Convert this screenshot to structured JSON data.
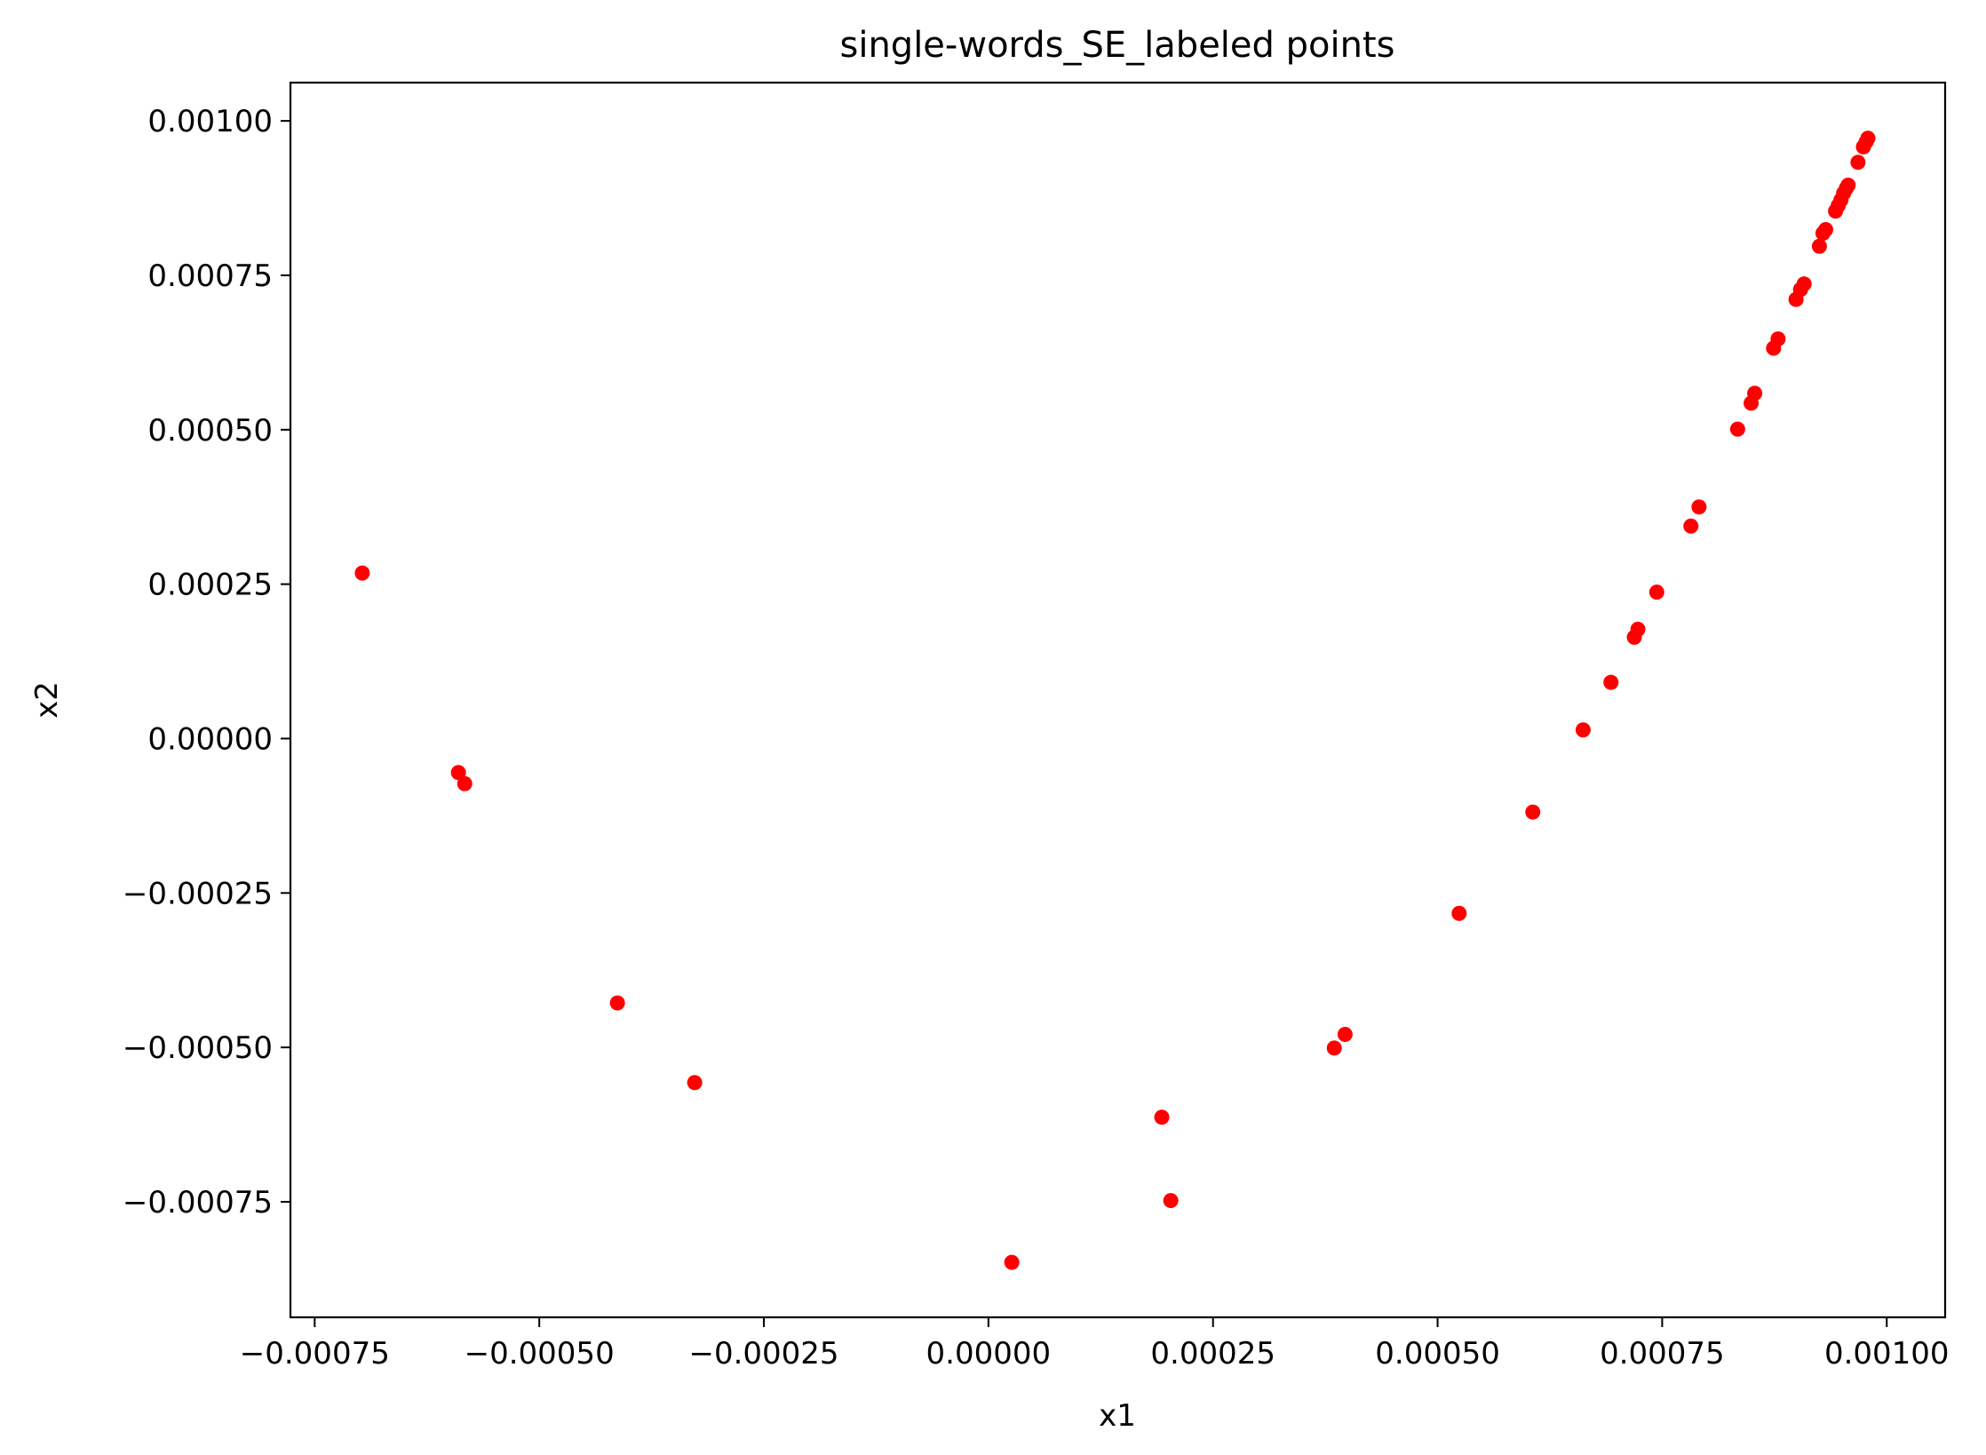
{
  "chart_data": {
    "type": "scatter",
    "title": "single-words_SE_labeled points",
    "xlabel": "x1",
    "ylabel": "x2",
    "xlim": [
      -0.000777,
      0.001065
    ],
    "ylim": [
      -0.000937,
      0.001062
    ],
    "grid": false,
    "marker_color": "#ff0000",
    "x_ticks": [
      {
        "value": -0.00075,
        "label": "−0.00075"
      },
      {
        "value": -0.0005,
        "label": "−0.00050"
      },
      {
        "value": -0.00025,
        "label": "−0.00025"
      },
      {
        "value": 0.0,
        "label": "0.00000"
      },
      {
        "value": 0.00025,
        "label": "0.00025"
      },
      {
        "value": 0.0005,
        "label": "0.00050"
      },
      {
        "value": 0.00075,
        "label": "0.00075"
      },
      {
        "value": 0.001,
        "label": "0.00100"
      }
    ],
    "y_ticks": [
      {
        "value": 0.001,
        "label": "0.00100"
      },
      {
        "value": 0.00075,
        "label": "0.00075"
      },
      {
        "value": 0.0005,
        "label": "0.00050"
      },
      {
        "value": 0.00025,
        "label": "0.00025"
      },
      {
        "value": 0.0,
        "label": "0.00000"
      },
      {
        "value": -0.00025,
        "label": "−0.00025"
      },
      {
        "value": -0.0005,
        "label": "−0.00050"
      },
      {
        "value": -0.00075,
        "label": "−0.00075"
      }
    ],
    "series": [
      {
        "x": [
          -0.000697,
          -0.00059,
          -0.000583,
          -0.000413,
          -0.000327,
          2.6e-05,
          0.000193,
          0.000203,
          0.000385,
          0.000397,
          0.000524,
          0.000606,
          0.000662,
          0.000693,
          0.000719,
          0.000723,
          0.000744,
          0.000782,
          0.000791,
          0.000834,
          0.000849,
          0.000853,
          0.000874,
          0.000879,
          0.000899,
          0.000904,
          0.000908,
          0.000925,
          0.000929,
          0.000932,
          0.000943,
          0.000946,
          0.000949,
          0.000952,
          0.000955,
          0.000957,
          0.000968,
          0.000974,
          0.000977,
          0.000979
        ],
        "y": [
          0.000268,
          -5.5e-05,
          -7.3e-05,
          -0.000428,
          -0.000557,
          -0.000848,
          -0.000613,
          -0.000748,
          -0.000501,
          -0.000479,
          -0.000283,
          -0.000119,
          1.4e-05,
          9.1e-05,
          0.000164,
          0.000177,
          0.000237,
          0.000344,
          0.000375,
          0.000501,
          0.000543,
          0.000559,
          0.000632,
          0.000647,
          0.000711,
          0.000727,
          0.000736,
          0.000797,
          0.000818,
          0.000824,
          0.000854,
          0.000863,
          0.000872,
          0.000883,
          0.000891,
          0.000896,
          0.000933,
          0.000958,
          0.000966,
          0.000972
        ]
      }
    ]
  }
}
